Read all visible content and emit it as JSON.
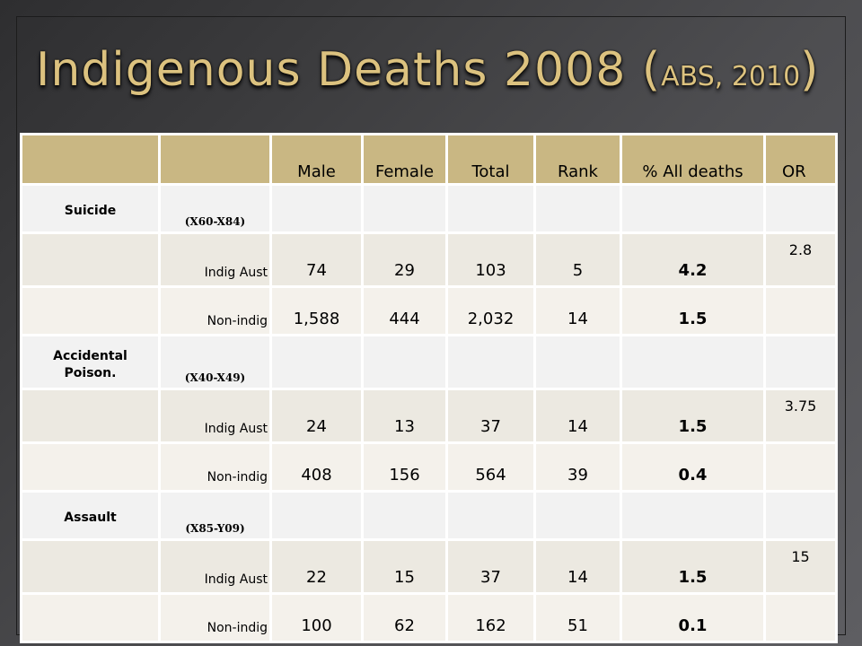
{
  "title": {
    "main": "Indigenous Deaths 2008 (",
    "source": "ABS, 2010",
    "close": ")"
  },
  "table": {
    "columns": [
      "",
      "",
      "Male",
      "Female",
      "Total",
      "Rank",
      "% All deaths",
      "OR"
    ],
    "rows": [
      {
        "type": "group",
        "category": "Suicide",
        "code": "(X60-X84)"
      },
      {
        "type": "data",
        "population": "Indig Aust",
        "male": "74",
        "female": "29",
        "total": "103",
        "rank": "5",
        "pct": "4.2",
        "or": "2.8"
      },
      {
        "type": "data",
        "population": "Non-indig",
        "male": "1,588",
        "female": "444",
        "total": "2,032",
        "rank": "14",
        "pct": "1.5",
        "or": ""
      },
      {
        "type": "group",
        "category": "Accidental Poison.",
        "code": "(X40-X49)"
      },
      {
        "type": "data",
        "population": "Indig Aust",
        "male": "24",
        "female": "13",
        "total": "37",
        "rank": "14",
        "pct": "1.5",
        "or": "3.75"
      },
      {
        "type": "data",
        "population": "Non-indig",
        "male": "408",
        "female": "156",
        "total": "564",
        "rank": "39",
        "pct": "0.4",
        "or": ""
      },
      {
        "type": "group",
        "category": "Assault",
        "code": "(X85-Y09)"
      },
      {
        "type": "data",
        "population": "Indig Aust",
        "male": "22",
        "female": "15",
        "total": "37",
        "rank": "14",
        "pct": "1.5",
        "or": "15"
      },
      {
        "type": "data",
        "population": "Non-indig",
        "male": "100",
        "female": "62",
        "total": "162",
        "rank": "51",
        "pct": "0.1",
        "or": ""
      }
    ]
  },
  "colors": {
    "title": "#dcc27f",
    "header_fill": "#c9b783",
    "row_fill_a": "#ece9e1",
    "row_fill_b": "#f4f1eb",
    "background": "#4a4a4d"
  }
}
